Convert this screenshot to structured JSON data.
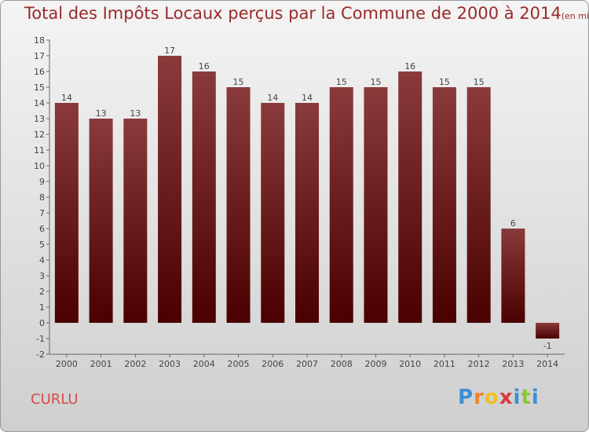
{
  "header": {
    "title": "Total des Impôts Locaux perçus par la Commune de 2000 à 2014",
    "subtitle": "(en milliers d'€)"
  },
  "footer": {
    "commune": "CURLU",
    "brand_letters": [
      "P",
      "r",
      "o",
      "x",
      "i",
      "t",
      "i"
    ],
    "brand_colors": [
      "#3a8fd8",
      "#e8862a",
      "#f0c020",
      "#d83a3a",
      "#3a8fd8",
      "#8cc43a",
      "#3a8fd8"
    ]
  },
  "chart_data": {
    "type": "bar",
    "categories": [
      "2000",
      "2001",
      "2002",
      "2003",
      "2004",
      "2005",
      "2006",
      "2007",
      "2008",
      "2009",
      "2010",
      "2011",
      "2012",
      "2013",
      "2014"
    ],
    "values": [
      14,
      13,
      13,
      17,
      16,
      15,
      14,
      14,
      15,
      15,
      16,
      15,
      15,
      6,
      -1
    ],
    "ylim": [
      -2,
      18
    ],
    "yticks": [
      "-2",
      "-1",
      "0",
      "1",
      "2",
      "3",
      "4",
      "5",
      "6",
      "7",
      "8",
      "9",
      "10",
      "11",
      "12",
      "13",
      "14",
      "15",
      "16",
      "17",
      "18"
    ],
    "grid": false,
    "bar_color_top": "#8a3a3a",
    "bar_color_bottom": "#4a0000"
  }
}
